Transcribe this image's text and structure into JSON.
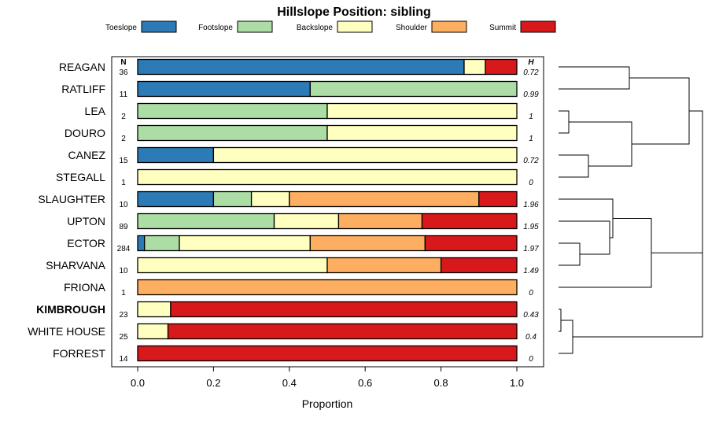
{
  "chart_data": {
    "type": "bar",
    "stacked": true,
    "orientation": "horizontal",
    "title": "Hillslope Position: sibling",
    "xlabel": "Proportion",
    "xlim": [
      0,
      1
    ],
    "xticks": [
      "0.0",
      "0.2",
      "0.4",
      "0.6",
      "0.8",
      "1.0"
    ],
    "xtick_values": [
      0,
      0.2,
      0.4,
      0.6,
      0.8,
      1.0
    ],
    "n_header": "N",
    "h_header": "H",
    "legend": [
      {
        "name": "Toeslope",
        "color": "#2c7bb6"
      },
      {
        "name": "Footslope",
        "color": "#abdda4"
      },
      {
        "name": "Backslope",
        "color": "#ffffbf"
      },
      {
        "name": "Shoulder",
        "color": "#fdae61"
      },
      {
        "name": "Summit",
        "color": "#d7191c"
      }
    ],
    "rows": [
      {
        "name": "REAGAN",
        "n": "36",
        "h": "0.72",
        "bold": false,
        "values": [
          0.861,
          0.0,
          0.056,
          0.0,
          0.083
        ]
      },
      {
        "name": "RATLIFF",
        "n": "11",
        "h": "0.99",
        "bold": false,
        "values": [
          0.455,
          0.545,
          0.0,
          0.0,
          0.0
        ]
      },
      {
        "name": "LEA",
        "n": "2",
        "h": "1",
        "bold": false,
        "values": [
          0.0,
          0.5,
          0.5,
          0.0,
          0.0
        ]
      },
      {
        "name": "DOURO",
        "n": "2",
        "h": "1",
        "bold": false,
        "values": [
          0.0,
          0.5,
          0.5,
          0.0,
          0.0
        ]
      },
      {
        "name": "CANEZ",
        "n": "15",
        "h": "0.72",
        "bold": false,
        "values": [
          0.2,
          0.0,
          0.8,
          0.0,
          0.0
        ]
      },
      {
        "name": "STEGALL",
        "n": "1",
        "h": "0",
        "bold": false,
        "values": [
          0.0,
          0.0,
          1.0,
          0.0,
          0.0
        ]
      },
      {
        "name": "SLAUGHTER",
        "n": "10",
        "h": "1.96",
        "bold": false,
        "values": [
          0.2,
          0.1,
          0.1,
          0.5,
          0.1
        ]
      },
      {
        "name": "UPTON",
        "n": "89",
        "h": "1.95",
        "bold": false,
        "values": [
          0.0,
          0.36,
          0.17,
          0.22,
          0.25
        ]
      },
      {
        "name": "ECTOR",
        "n": "284",
        "h": "1.97",
        "bold": false,
        "values": [
          0.018,
          0.092,
          0.345,
          0.303,
          0.242
        ]
      },
      {
        "name": "SHARVANA",
        "n": "10",
        "h": "1.49",
        "bold": false,
        "values": [
          0.0,
          0.0,
          0.5,
          0.3,
          0.2
        ]
      },
      {
        "name": "FRIONA",
        "n": "1",
        "h": "0",
        "bold": false,
        "values": [
          0.0,
          0.0,
          0.0,
          1.0,
          0.0
        ]
      },
      {
        "name": "KIMBROUGH",
        "n": "23",
        "h": "0.43",
        "bold": true,
        "values": [
          0.0,
          0.0,
          0.087,
          0.0,
          0.913
        ]
      },
      {
        "name": "WHITE HOUSE",
        "n": "25",
        "h": "0.4",
        "bold": false,
        "values": [
          0.0,
          0.0,
          0.08,
          0.0,
          0.92
        ]
      },
      {
        "name": "FORREST",
        "n": "14",
        "h": "0",
        "bold": false,
        "values": [
          0.0,
          0.0,
          0.0,
          0.0,
          1.0
        ]
      }
    ],
    "dendrogram": {
      "type": "hierarchical-clustering",
      "merges": [
        {
          "a": [
            "LEA"
          ],
          "b": [
            "DOURO"
          ]
        },
        {
          "a": [
            "CANEZ"
          ],
          "b": [
            "STEGALL"
          ]
        },
        {
          "a": [
            "LEA",
            "DOURO"
          ],
          "b": [
            "CANEZ",
            "STEGALL"
          ]
        },
        {
          "a": [
            "REAGAN"
          ],
          "b": [
            "RATLIFF"
          ]
        },
        {
          "a": [
            "REAGAN",
            "RATLIFF"
          ],
          "b": [
            "LEA",
            "DOURO",
            "CANEZ",
            "STEGALL"
          ]
        },
        {
          "a": [
            "ECTOR"
          ],
          "b": [
            "SHARVANA"
          ]
        },
        {
          "a": [
            "UPTON"
          ],
          "b": [
            "ECTOR",
            "SHARVANA"
          ]
        },
        {
          "a": [
            "SLAUGHTER"
          ],
          "b": [
            "UPTON",
            "ECTOR",
            "SHARVANA"
          ]
        },
        {
          "a": [
            "SLAUGHTER",
            "UPTON",
            "ECTOR",
            "SHARVANA"
          ],
          "b": [
            "FRIONA"
          ]
        },
        {
          "a": [
            "KIMBROUGH"
          ],
          "b": [
            "WHITE HOUSE"
          ]
        },
        {
          "a": [
            "KIMBROUGH",
            "WHITE HOUSE"
          ],
          "b": [
            "FORREST"
          ]
        },
        {
          "a": [
            "SLAUGHTER",
            "UPTON",
            "ECTOR",
            "SHARVANA",
            "FRIONA"
          ],
          "b": [
            "KIMBROUGH",
            "WHITE HOUSE",
            "FORREST"
          ]
        },
        {
          "a": [
            "REAGAN",
            "RATLIFF",
            "LEA",
            "DOURO",
            "CANEZ",
            "STEGALL"
          ],
          "b": [
            "SLAUGHTER",
            "UPTON",
            "ECTOR",
            "SHARVANA",
            "FRIONA",
            "KIMBROUGH",
            "WHITE HOUSE",
            "FORREST"
          ]
        }
      ]
    }
  }
}
